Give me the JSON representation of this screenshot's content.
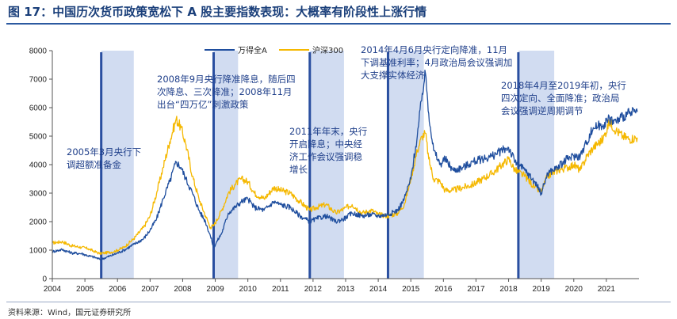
{
  "header": {
    "title": "图 17：中国历次货币政策宽松下 A 股主要指数表现：大概率有阶段性上涨行情"
  },
  "footer": {
    "source": "资料来源：Wind，国元证券研究所"
  },
  "annotations": [
    "2005年3月央行下调超额准备金",
    "2008年9月央行降准降息，随后四次降息、三次降准；2008年11月出台“四万亿”刺激政策",
    "2011年年末，央行开启降息；中央经济工作会议强调稳增长",
    "2014年4月6月央行定向降准，11月下调基准利率；4月政治局会议强调加大支撑实体经济",
    "2018年4月至2019年初，央行四次定向、全面降准；政治局会议强调逆周期调节"
  ],
  "chart_data": {
    "type": "line",
    "title": "",
    "xlabel": "",
    "ylabel": "",
    "ylim": [
      0,
      8000
    ],
    "yticks": [
      0,
      1000,
      2000,
      3000,
      4000,
      5000,
      6000,
      7000,
      8000
    ],
    "xlim": [
      2004.0,
      2022.0
    ],
    "xticks": [
      "2004",
      "2005",
      "2006",
      "2007",
      "2008",
      "2009",
      "2010",
      "2011",
      "2012",
      "2013",
      "2014",
      "2015",
      "2016",
      "2017",
      "2018",
      "2019",
      "2020",
      "2021"
    ],
    "legend_position": "top",
    "grid": false,
    "series": [
      {
        "name": "万得全A",
        "color": "#1f4e9e",
        "x": [
          2004.0,
          2004.3,
          2004.6,
          2004.9,
          2005.1,
          2005.3,
          2005.45,
          2005.6,
          2005.9,
          2006.2,
          2006.5,
          2006.8,
          2007.0,
          2007.2,
          2007.4,
          2007.6,
          2007.8,
          2007.95,
          2008.1,
          2008.3,
          2008.5,
          2008.7,
          2008.85,
          2008.95,
          2009.2,
          2009.4,
          2009.6,
          2009.8,
          2010.0,
          2010.2,
          2010.5,
          2010.8,
          2011.0,
          2011.3,
          2011.6,
          2011.9,
          2012.1,
          2012.4,
          2012.7,
          2012.95,
          2013.2,
          2013.5,
          2013.8,
          2014.0,
          2014.3,
          2014.6,
          2014.8,
          2015.0,
          2015.2,
          2015.35,
          2015.45,
          2015.55,
          2015.7,
          2015.9,
          2016.05,
          2016.3,
          2016.6,
          2016.9,
          2017.2,
          2017.5,
          2017.8,
          2018.0,
          2018.2,
          2018.5,
          2018.8,
          2019.0,
          2019.2,
          2019.5,
          2019.8,
          2020.0,
          2020.2,
          2020.4,
          2020.6,
          2020.9,
          2021.1,
          2021.3,
          2021.5,
          2021.7,
          2021.95
        ],
        "y": [
          950,
          1020,
          900,
          880,
          800,
          750,
          680,
          720,
          850,
          1000,
          1200,
          1400,
          1700,
          2100,
          2800,
          3400,
          4100,
          3900,
          3500,
          3000,
          2400,
          2000,
          1500,
          1100,
          1600,
          2300,
          2500,
          2700,
          2800,
          2500,
          2400,
          2700,
          2600,
          2500,
          2200,
          2000,
          2100,
          2200,
          2000,
          2100,
          2300,
          2200,
          2250,
          2200,
          2250,
          2400,
          2800,
          3500,
          5000,
          6500,
          7200,
          5800,
          4500,
          4000,
          4200,
          3800,
          3900,
          4100,
          4200,
          4300,
          4500,
          4600,
          4100,
          3800,
          3400,
          3000,
          3700,
          3900,
          4200,
          4300,
          4300,
          4800,
          5300,
          5400,
          5600,
          5500,
          5700,
          5800,
          5850
        ]
      },
      {
        "name": "沪深300",
        "color": "#f5b800",
        "x": [
          2004.0,
          2004.3,
          2004.6,
          2004.9,
          2005.1,
          2005.3,
          2005.45,
          2005.6,
          2005.9,
          2006.2,
          2006.5,
          2006.8,
          2007.0,
          2007.2,
          2007.4,
          2007.6,
          2007.8,
          2007.95,
          2008.1,
          2008.3,
          2008.5,
          2008.7,
          2008.85,
          2008.95,
          2009.2,
          2009.4,
          2009.6,
          2009.8,
          2010.0,
          2010.2,
          2010.5,
          2010.8,
          2011.0,
          2011.3,
          2011.6,
          2011.9,
          2012.1,
          2012.4,
          2012.7,
          2012.95,
          2013.2,
          2013.5,
          2013.8,
          2014.0,
          2014.3,
          2014.6,
          2014.8,
          2015.0,
          2015.2,
          2015.35,
          2015.45,
          2015.55,
          2015.7,
          2015.9,
          2016.05,
          2016.3,
          2016.6,
          2016.9,
          2017.2,
          2017.5,
          2017.8,
          2018.0,
          2018.2,
          2018.5,
          2018.8,
          2019.0,
          2019.2,
          2019.5,
          2019.8,
          2020.0,
          2020.2,
          2020.4,
          2020.6,
          2020.9,
          2021.1,
          2021.3,
          2021.5,
          2021.7,
          2021.95
        ],
        "y": [
          1250,
          1300,
          1150,
          1100,
          1050,
          950,
          880,
          900,
          950,
          1100,
          1400,
          1800,
          2200,
          3000,
          3900,
          4800,
          5600,
          5300,
          4700,
          3600,
          2800,
          2200,
          1800,
          1850,
          2400,
          3000,
          3300,
          3500,
          3400,
          3000,
          2800,
          3200,
          3100,
          3000,
          2700,
          2400,
          2500,
          2600,
          2300,
          2450,
          2600,
          2300,
          2400,
          2250,
          2200,
          2300,
          2600,
          3500,
          4500,
          5000,
          5100,
          4200,
          3500,
          3400,
          3100,
          3100,
          3200,
          3300,
          3500,
          3700,
          4000,
          4200,
          3800,
          3600,
          3200,
          3050,
          3600,
          3800,
          3900,
          4000,
          3800,
          4300,
          4600,
          4900,
          5500,
          5200,
          5000,
          4900,
          4950
        ]
      }
    ],
    "highlights": [
      [
        2005.5,
        2006.5
      ],
      [
        2008.95,
        2009.7
      ],
      [
        2011.9,
        2012.95
      ],
      [
        2014.3,
        2015.4
      ],
      [
        2018.3,
        2019.4
      ]
    ]
  }
}
